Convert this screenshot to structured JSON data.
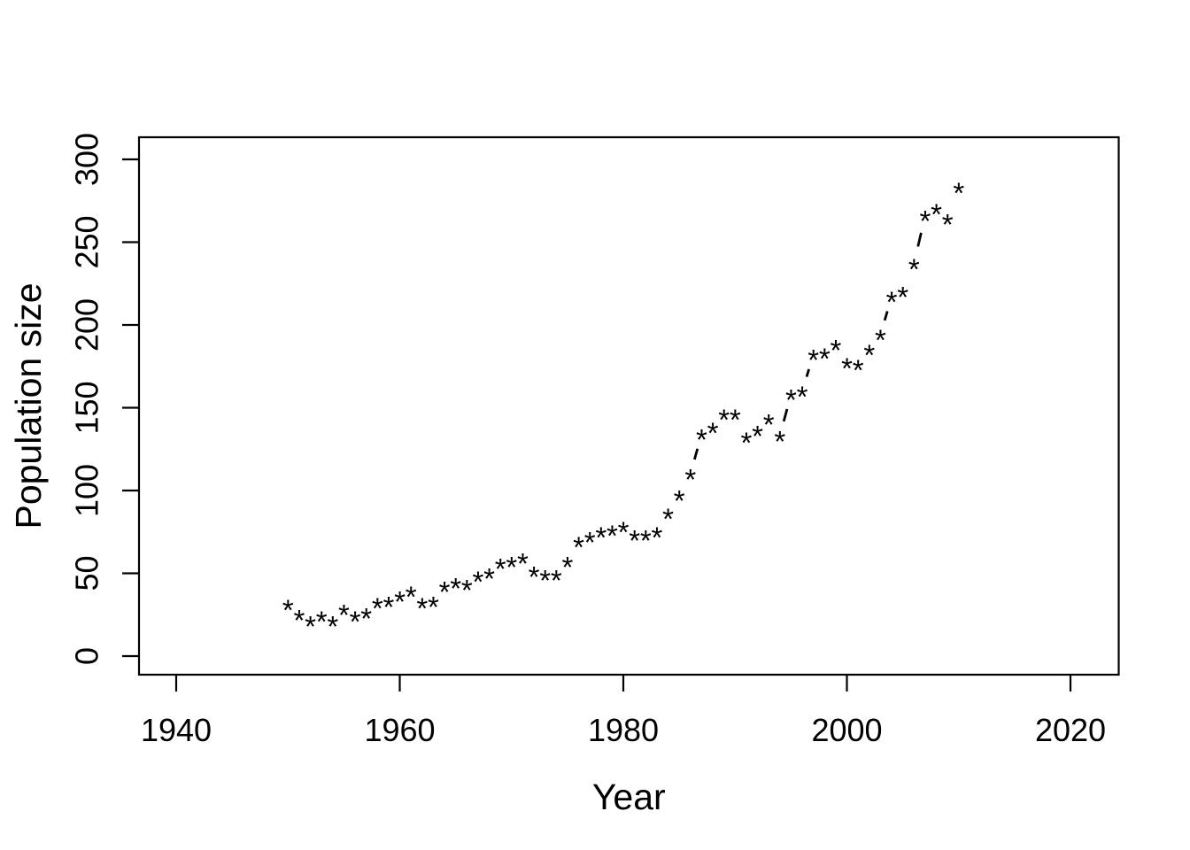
{
  "figure": {
    "background": "#ffffff",
    "foreground": "#000000",
    "description": "R base-graphics scatter/line plot of population size by year, points drawn as asterisks with dashed connectors between widely separated consecutive points"
  },
  "chart_data": {
    "type": "scatter",
    "title": "",
    "xlabel": "Year",
    "ylabel": "Population size",
    "point_symbol": "*",
    "connector_style": "dashed segment (lty=2) shown only where consecutive points are far apart (R type='b')",
    "grid": "off",
    "legend": "none",
    "x_ticks": [
      1940,
      1960,
      1980,
      2000,
      2020
    ],
    "y_ticks": [
      0,
      50,
      100,
      150,
      200,
      250,
      300
    ],
    "xlim": [
      1936.7,
      2024.3
    ],
    "ylim": [
      -11.2,
      313.4
    ],
    "series": [
      {
        "name": "Population size",
        "x": [
          1950,
          1951,
          1952,
          1953,
          1954,
          1955,
          1956,
          1957,
          1958,
          1959,
          1960,
          1961,
          1962,
          1963,
          1964,
          1965,
          1966,
          1967,
          1968,
          1969,
          1970,
          1971,
          1972,
          1973,
          1974,
          1975,
          1976,
          1977,
          1978,
          1979,
          1980,
          1981,
          1982,
          1983,
          1984,
          1985,
          1986,
          1987,
          1988,
          1989,
          1990,
          1991,
          1992,
          1993,
          1994,
          1995,
          1996,
          1997,
          1998,
          1999,
          2000,
          2001,
          2002,
          2003,
          2004,
          2005,
          2006,
          2007,
          2008,
          2009,
          2010
        ],
        "y": [
          31,
          25,
          21,
          24,
          21,
          28,
          24,
          26,
          32,
          33,
          36,
          39,
          32,
          33,
          42,
          44,
          43,
          48,
          50,
          56,
          57,
          59,
          51,
          49,
          49,
          57,
          69,
          72,
          75,
          76,
          78,
          73,
          73,
          75,
          86,
          97,
          110,
          134,
          138,
          146,
          146,
          132,
          136,
          143,
          133,
          158,
          160,
          182,
          183,
          188,
          177,
          176,
          185,
          194,
          217,
          220,
          237,
          266,
          270,
          264,
          283
        ]
      }
    ]
  }
}
